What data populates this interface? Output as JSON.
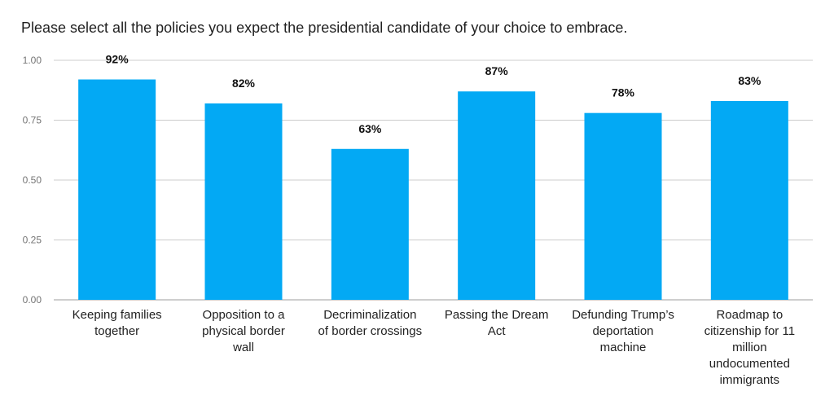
{
  "chart_data": {
    "type": "bar",
    "title": "Please select all the policies you expect the presidential candidate of your choice to embrace.",
    "xlabel": "",
    "ylabel": "",
    "ylim": [
      0,
      1
    ],
    "yticks": [
      "0.00",
      "0.25",
      "0.50",
      "0.75",
      "1.00"
    ],
    "grid": true,
    "legend": "none",
    "bar_color": "#03A9F4",
    "categories": [
      "Keeping families together",
      "Opposition to a physical border wall",
      "Decriminalization of border crossings",
      "Passing the Dream Act",
      "Defunding Trump’s deportation machine",
      "Roadmap to citizenship for 11 million undocumented immigrants"
    ],
    "category_lines": [
      [
        "Keeping families",
        "together"
      ],
      [
        "Opposition to a",
        "physical border",
        "wall"
      ],
      [
        "Decriminalization",
        "of border crossings"
      ],
      [
        "Passing the Dream",
        "Act"
      ],
      [
        "Defunding Trump’s",
        "deportation",
        "machine"
      ],
      [
        "Roadmap to",
        "citizenship for 11",
        "million",
        "undocumented",
        "immigrants"
      ]
    ],
    "values": [
      0.92,
      0.82,
      0.63,
      0.87,
      0.78,
      0.83
    ],
    "data_labels": [
      "92%",
      "82%",
      "63%",
      "87%",
      "78%",
      "83%"
    ]
  }
}
